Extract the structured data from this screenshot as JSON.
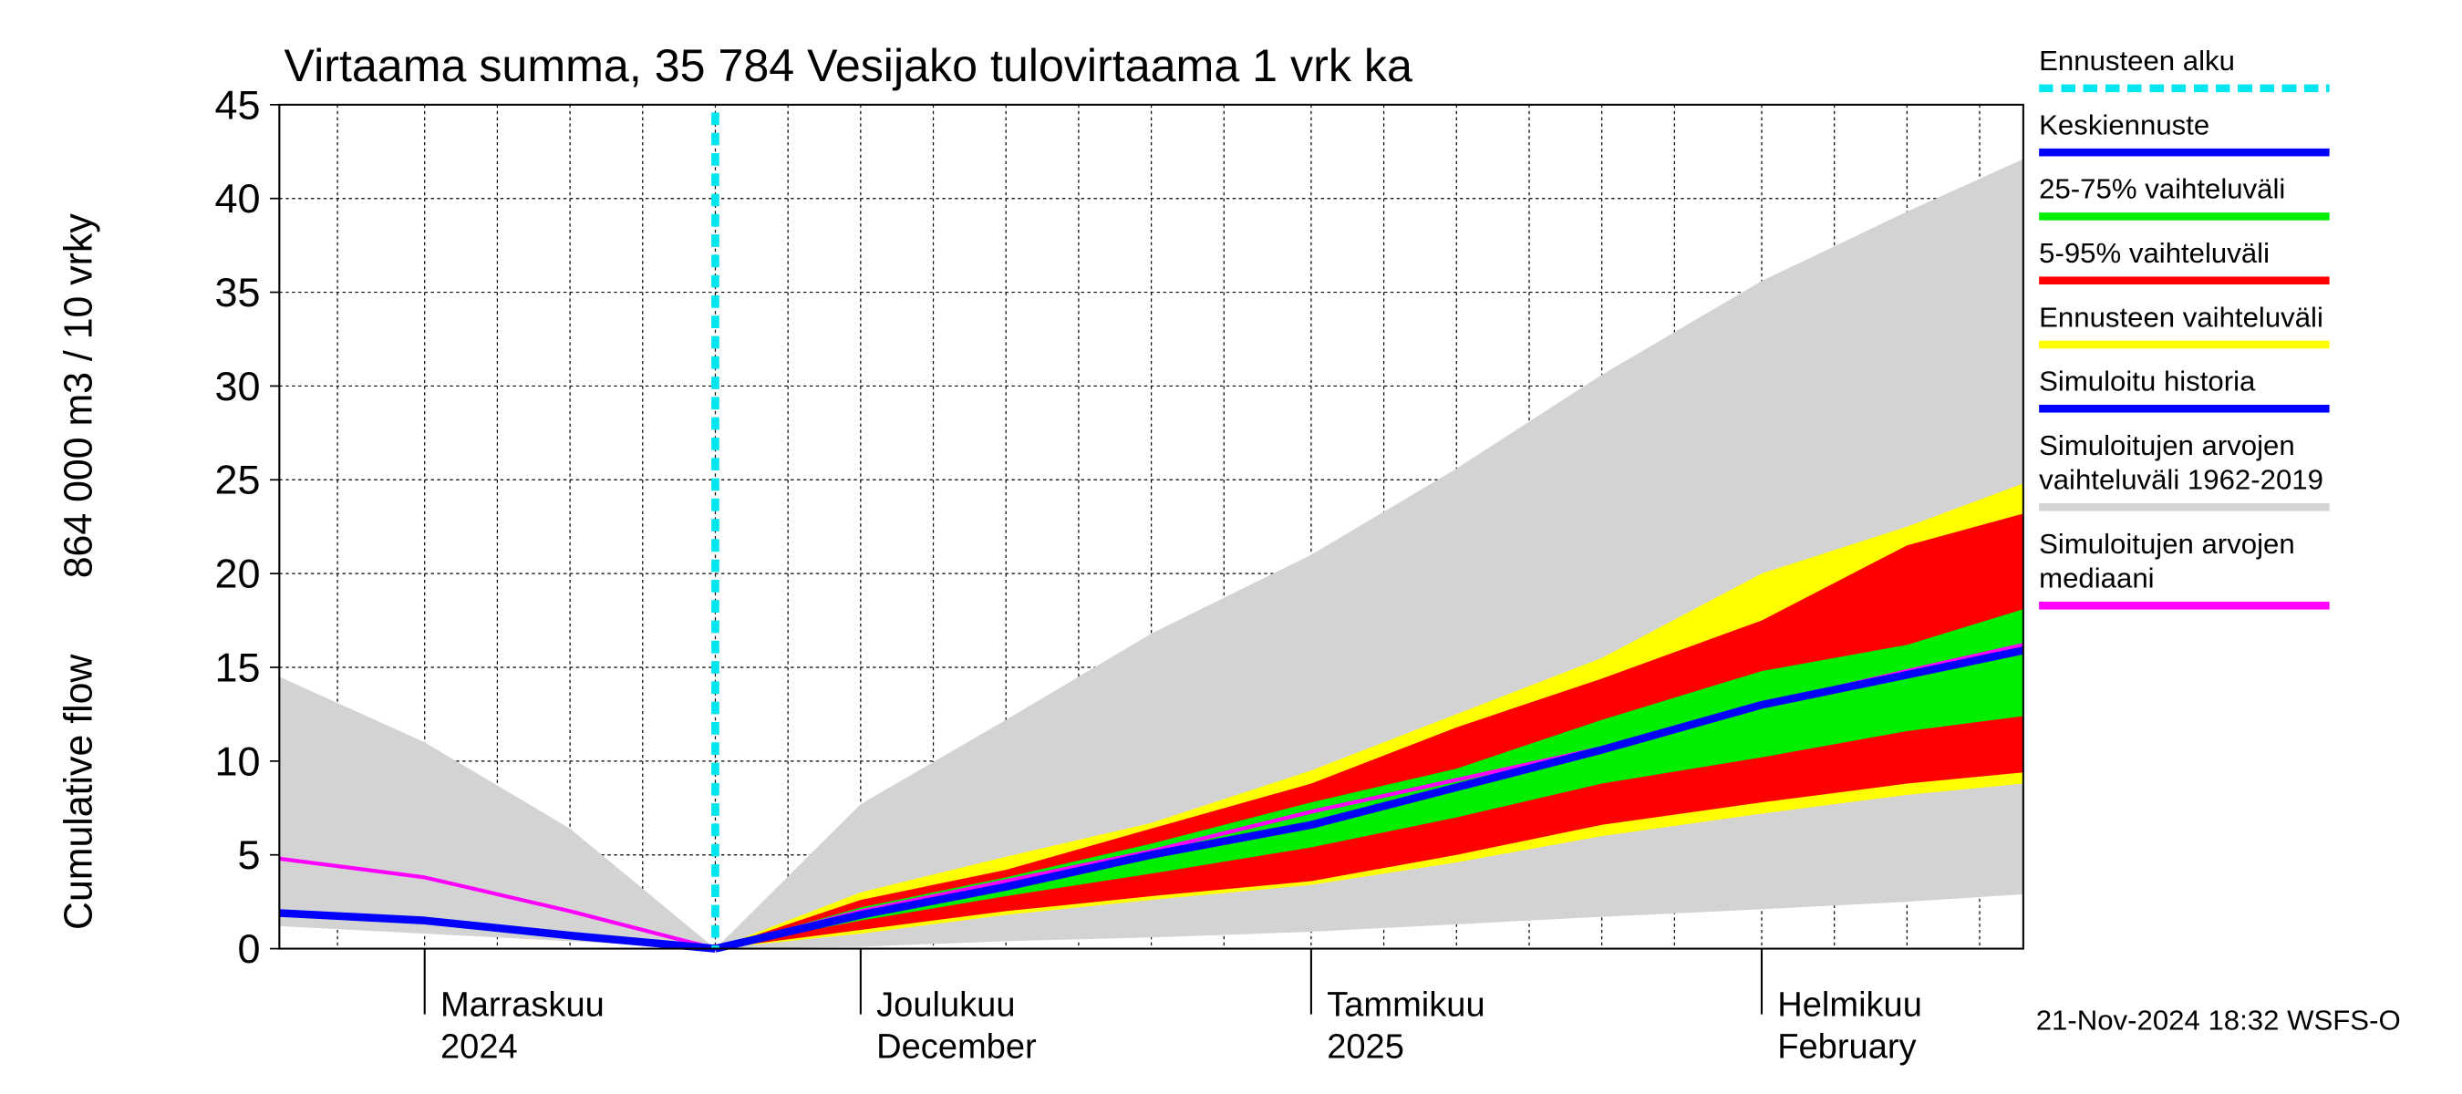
{
  "chart_data": {
    "type": "area",
    "title": "Virtaama summa, 35 784 Vesijako tulovirtaama 1 vrk ka",
    "ylabel": "Cumulative flow",
    "ylabel2": "864 000 m3 / 10 vrky",
    "footer": "21-Nov-2024 18:32 WSFS-O",
    "x": [
      "2024-10-22",
      "2024-11-01",
      "2024-11-11",
      "2024-11-21",
      "2024-12-01",
      "2024-12-11",
      "2024-12-21",
      "2025-01-01",
      "2025-01-11",
      "2025-01-21",
      "2025-02-01",
      "2025-02-11",
      "2025-02-19"
    ],
    "xlim": [
      "2024-10-22",
      "2025-02-19"
    ],
    "xticks": [
      {
        "value": "2024-11-01",
        "label": "Marraskuu"
      },
      {
        "value": "2024-12-01",
        "label": "Joulukuu"
      },
      {
        "value": "2025-01-01",
        "label": "Tammikuu"
      },
      {
        "value": "2025-02-01",
        "label": "Helmikuu"
      }
    ],
    "xtick_sublabels": [
      "2024",
      "December",
      "2025",
      "February"
    ],
    "xgrid": [
      "2024-10-26",
      "2024-11-01",
      "2024-11-06",
      "2024-11-11",
      "2024-11-16",
      "2024-11-21",
      "2024-11-26",
      "2024-12-01",
      "2024-12-06",
      "2024-12-11",
      "2024-12-16",
      "2024-12-21",
      "2024-12-26",
      "2025-01-01",
      "2025-01-06",
      "2025-01-11",
      "2025-01-16",
      "2025-01-21",
      "2025-01-26",
      "2025-02-01",
      "2025-02-06",
      "2025-02-11",
      "2025-02-16"
    ],
    "ylim": [
      0,
      45
    ],
    "yticks": [
      0,
      5,
      10,
      15,
      20,
      25,
      30,
      35,
      40,
      45
    ],
    "grid": true,
    "forecast_start": {
      "name": "Ennusteen alku",
      "color": "#00e5ee",
      "x": "2024-11-21"
    },
    "series": [
      {
        "name": "Keskiennuste",
        "color": "#0000ff",
        "values": [
          null,
          null,
          null,
          0,
          1.8,
          3.3,
          5.0,
          6.6,
          8.6,
          10.6,
          13.0,
          14.6,
          15.9
        ]
      },
      {
        "name": "25-75% vaihteluväli",
        "color": "#00ee00",
        "lower": [
          null,
          null,
          null,
          0,
          1.5,
          2.8,
          4.0,
          5.4,
          7.0,
          8.8,
          10.2,
          11.6,
          12.4
        ],
        "upper": [
          null,
          null,
          null,
          0,
          2.2,
          3.8,
          5.6,
          7.8,
          9.6,
          12.2,
          14.8,
          16.2,
          18.1
        ]
      },
      {
        "name": "5-95% vaihteluväli",
        "color": "#ff0000",
        "lower": [
          null,
          null,
          null,
          0,
          1.0,
          2.0,
          2.8,
          3.6,
          5.0,
          6.6,
          7.8,
          8.8,
          9.4
        ],
        "upper": [
          null,
          null,
          null,
          0,
          2.6,
          4.2,
          6.4,
          8.8,
          11.8,
          14.4,
          17.5,
          21.5,
          23.2
        ]
      },
      {
        "name": "Ennusteen vaihteluväli",
        "color": "#ffff00",
        "lower": [
          null,
          null,
          null,
          0,
          0.8,
          1.8,
          2.6,
          3.4,
          4.6,
          6.0,
          7.2,
          8.2,
          8.8
        ],
        "upper": [
          null,
          null,
          null,
          0,
          3.0,
          4.9,
          6.7,
          9.5,
          12.5,
          15.5,
          20.0,
          22.5,
          24.8
        ]
      },
      {
        "name": "Simuloitu historia",
        "color": "#0000ff",
        "values": [
          1.9,
          1.5,
          0.7,
          0,
          null,
          null,
          null,
          null,
          null,
          null,
          null,
          null,
          null
        ]
      },
      {
        "name": "Simuloitujen arvojen vaihteluväli 1962-2019",
        "color": "#d3d3d3",
        "lower": [
          1.2,
          0.8,
          0.4,
          0,
          0.1,
          0.4,
          0.6,
          0.9,
          1.3,
          1.7,
          2.1,
          2.5,
          2.9
        ],
        "upper": [
          14.5,
          11.0,
          6.4,
          0,
          7.7,
          12.2,
          16.8,
          21.0,
          25.6,
          30.6,
          35.6,
          39.3,
          42.1
        ]
      },
      {
        "name": "Simuloitujen arvojen mediaani",
        "color": "#ff00ff",
        "values": [
          4.8,
          3.8,
          2.0,
          0,
          2.0,
          3.6,
          5.2,
          7.3,
          9.0,
          10.7,
          13.0,
          14.8,
          16.2
        ]
      }
    ]
  }
}
